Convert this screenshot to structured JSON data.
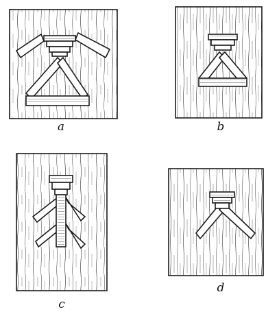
{
  "panels": [
    {
      "label": "a"
    },
    {
      "label": "b"
    },
    {
      "label": "c"
    },
    {
      "label": "d"
    }
  ],
  "colors": {
    "ink": "#1a1a1a",
    "board": "#ffffff"
  }
}
